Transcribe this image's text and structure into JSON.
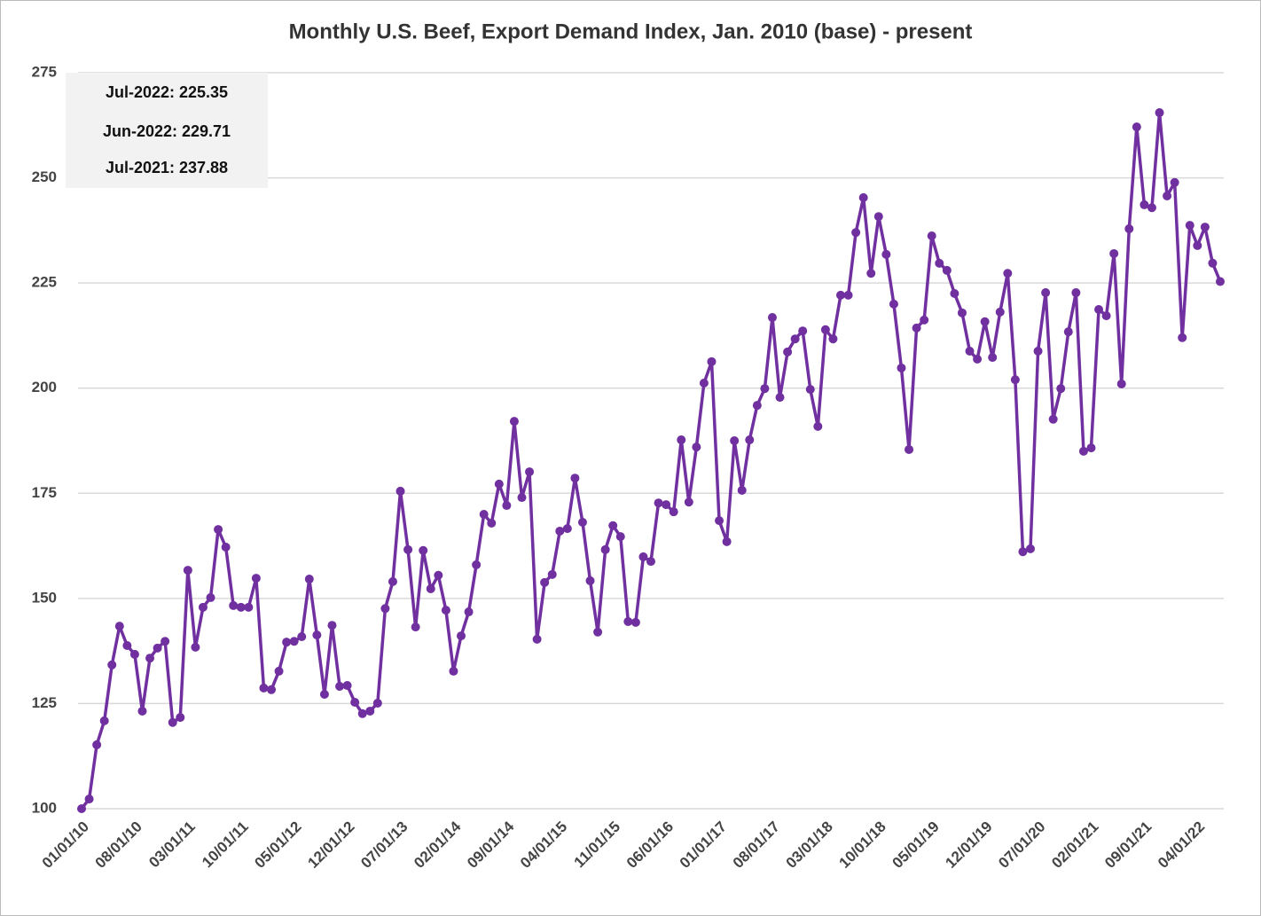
{
  "chart_data": {
    "type": "line",
    "title": "Monthly U.S. Beef, Export Demand Index, Jan. 2010 (base) - present",
    "annotations": [
      "Jul-2022: 225.35",
      "Jun-2022: 229.71",
      "Jul-2021: 237.88"
    ],
    "categories": [
      "01/01/10",
      null,
      null,
      null,
      null,
      null,
      null,
      "08/01/10",
      null,
      null,
      null,
      null,
      null,
      null,
      "03/01/11",
      null,
      null,
      null,
      null,
      null,
      null,
      "10/01/11",
      null,
      null,
      null,
      null,
      null,
      null,
      "05/01/12",
      null,
      null,
      null,
      null,
      null,
      null,
      "12/01/12",
      null,
      null,
      null,
      null,
      null,
      null,
      "07/01/13",
      null,
      null,
      null,
      null,
      null,
      null,
      "02/01/14",
      null,
      null,
      null,
      null,
      null,
      null,
      "09/01/14",
      null,
      null,
      null,
      null,
      null,
      null,
      "04/01/15",
      null,
      null,
      null,
      null,
      null,
      null,
      "11/01/15",
      null,
      null,
      null,
      null,
      null,
      null,
      "06/01/16",
      null,
      null,
      null,
      null,
      null,
      null,
      "01/01/17",
      null,
      null,
      null,
      null,
      null,
      null,
      "08/01/17",
      null,
      null,
      null,
      null,
      null,
      null,
      "03/01/18",
      null,
      null,
      null,
      null,
      null,
      null,
      "10/01/18",
      null,
      null,
      null,
      null,
      null,
      null,
      "05/01/19",
      null,
      null,
      null,
      null,
      null,
      null,
      "12/01/19",
      null,
      null,
      null,
      null,
      null,
      null,
      "07/01/20",
      null,
      null,
      null,
      null,
      null,
      null,
      "02/01/21",
      null,
      null,
      null,
      null,
      null,
      null,
      "09/01/21",
      null,
      null,
      null,
      null,
      null,
      null,
      "04/01/22",
      null,
      null,
      null
    ],
    "series": [
      {
        "name": "Export Demand Index",
        "color": "#7030a0",
        "values": [
          100,
          102.3,
          115.2,
          120.9,
          134.2,
          143.4,
          138.8,
          136.7,
          123.2,
          135.8,
          138.2,
          139.8,
          120.5,
          121.7,
          156.7,
          138.4,
          147.9,
          150.2,
          166.4,
          162.2,
          148.3,
          147.9,
          147.9,
          154.8,
          128.7,
          128.3,
          132.7,
          139.6,
          139.8,
          140.9,
          154.6,
          141.3,
          127.2,
          143.6,
          129.1,
          129.3,
          125.3,
          122.6,
          123.2,
          125.1,
          147.6,
          154.0,
          175.5,
          161.6,
          143.2,
          161.4,
          152.3,
          155.5,
          147.2,
          132.7,
          141.1,
          146.8,
          158.0,
          170.0,
          167.9,
          177.2,
          172.1,
          192.1,
          174.0,
          180.1,
          140.3,
          153.8,
          155.7,
          166.0,
          166.6,
          178.6,
          168.1,
          154.2,
          142.0,
          161.6,
          167.3,
          164.7,
          144.5,
          144.3,
          159.9,
          158.8,
          172.7,
          172.3,
          170.6,
          187.7,
          172.9,
          186.0,
          201.2,
          206.3,
          168.5,
          163.5,
          187.5,
          175.7,
          187.7,
          195.9,
          199.9,
          216.8,
          197.8,
          208.6,
          211.7,
          213.6,
          199.7,
          190.9,
          213.9,
          211.7,
          222.1,
          222.1,
          237.0,
          245.3,
          227.3,
          240.8,
          231.8,
          220.0,
          204.8,
          185.4,
          214.3,
          216.2,
          236.2,
          229.7,
          228.0,
          222.5,
          217.9,
          208.8,
          206.9,
          215.8,
          207.3,
          218.1,
          227.3,
          202.0,
          161.1,
          161.8,
          208.8,
          222.7,
          192.6,
          199.9,
          213.4,
          222.7,
          185.0,
          185.8,
          218.7,
          217.2,
          232.0,
          201.0,
          237.88,
          262.1,
          243.6,
          242.9,
          265.5,
          245.7,
          248.9,
          212.0,
          238.7,
          233.9,
          238.3,
          229.71,
          225.35
        ]
      }
    ],
    "ylim": [
      100,
      275
    ],
    "yticks": [
      100,
      125,
      150,
      175,
      200,
      225,
      250,
      275
    ],
    "grid": true
  }
}
